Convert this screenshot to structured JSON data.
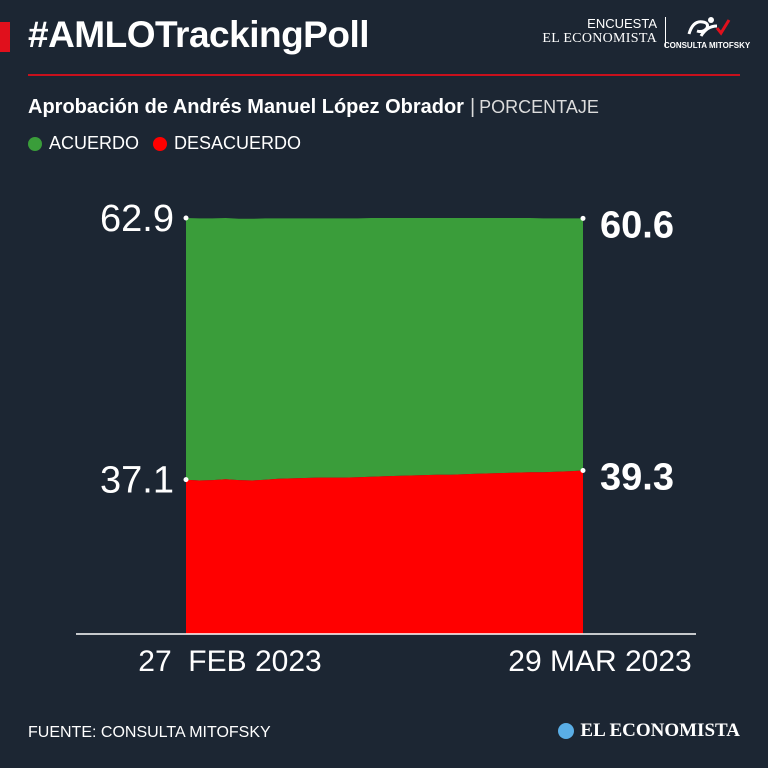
{
  "header": {
    "hashtag": "#AMLOTrackingPoll",
    "brand_line1": "ENCUESTA",
    "brand_line2": "EL ECONOMISTA",
    "mitofsky_label": "CONSULTA MITOFSKY"
  },
  "subtitle": {
    "bold": "Aprobación de Andrés Manuel López Obrador",
    "separator": "|",
    "unit": "PORCENTAJE"
  },
  "legend": [
    {
      "label": "ACUERDO",
      "color": "#3a9d3a"
    },
    {
      "label": "DESACUERDO",
      "color": "#ff0000"
    }
  ],
  "chart_data": {
    "type": "area",
    "x": [
      "2023-02-27",
      "2023-02-28",
      "2023-03-01",
      "2023-03-02",
      "2023-03-03",
      "2023-03-04",
      "2023-03-05",
      "2023-03-06",
      "2023-03-07",
      "2023-03-08",
      "2023-03-09",
      "2023-03-10",
      "2023-03-11",
      "2023-03-12",
      "2023-03-13",
      "2023-03-14",
      "2023-03-15",
      "2023-03-16",
      "2023-03-17",
      "2023-03-18",
      "2023-03-19",
      "2023-03-20",
      "2023-03-21",
      "2023-03-22",
      "2023-03-23",
      "2023-03-24",
      "2023-03-25",
      "2023-03-26",
      "2023-03-27",
      "2023-03-28",
      "2023-03-29"
    ],
    "x_start_label": "27  FEB 2023",
    "x_end_label": "29 MAR 2023",
    "series": [
      {
        "name": "ACUERDO",
        "color": "#3a9d3a",
        "values": [
          62.9,
          63.0,
          62.9,
          62.8,
          62.8,
          62.9,
          62.8,
          62.6,
          62.5,
          62.4,
          62.3,
          62.3,
          62.3,
          62.2,
          62.2,
          62.1,
          62.0,
          61.9,
          61.8,
          61.7,
          61.7,
          61.6,
          61.5,
          61.4,
          61.3,
          61.2,
          61.1,
          61.0,
          60.9,
          60.8,
          60.6
        ]
      },
      {
        "name": "DESACUERDO",
        "color": "#ff0000",
        "values": [
          37.1,
          36.9,
          37.0,
          37.2,
          37.0,
          36.9,
          37.1,
          37.3,
          37.4,
          37.5,
          37.6,
          37.6,
          37.6,
          37.7,
          37.8,
          37.9,
          38.0,
          38.1,
          38.2,
          38.3,
          38.3,
          38.4,
          38.5,
          38.6,
          38.7,
          38.8,
          38.9,
          38.9,
          39.0,
          39.1,
          39.3
        ]
      }
    ],
    "end_labels": {
      "acuerdo_start": "62.9",
      "acuerdo_end": "60.6",
      "desacuerdo_start": "37.1",
      "desacuerdo_end": "39.3"
    }
  },
  "footer": {
    "source": "FUENTE: CONSULTA MITOFSKY",
    "brand": "EL ECONOMISTA"
  }
}
